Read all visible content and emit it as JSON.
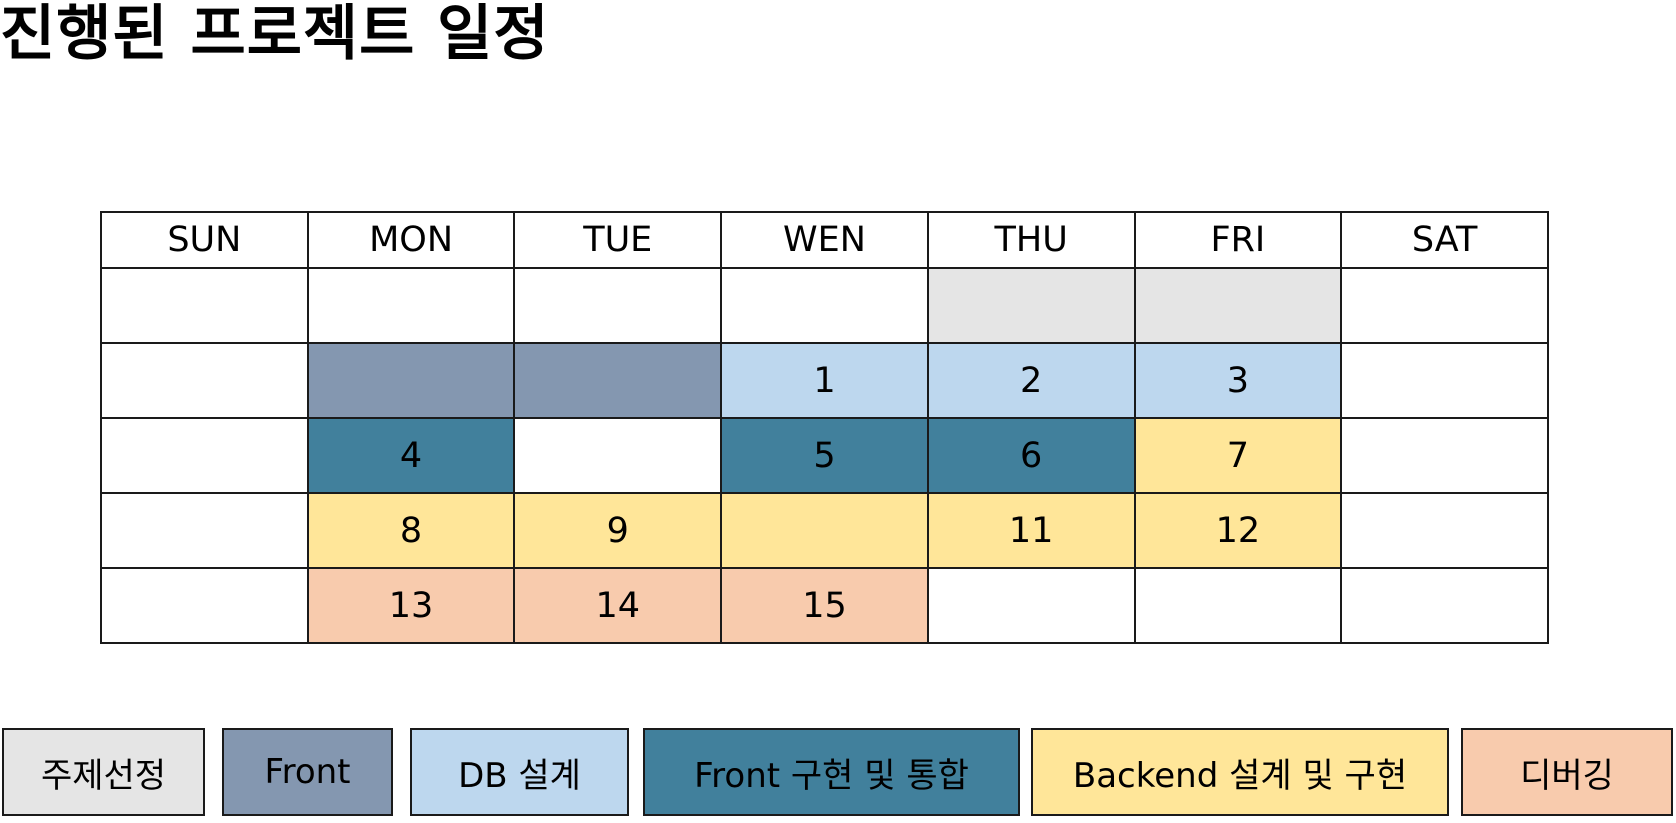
{
  "title": "진행된 프로젝트 일정",
  "colors": {
    "topic": "#E5E5E5",
    "front": "#8497B0",
    "db": "#BDD7EE",
    "front_impl": "#41809C",
    "backend": "#FFE699",
    "debug": "#F8CBAD",
    "empty": "#FFFFFF",
    "border": "#1A1A1A"
  },
  "calendar": {
    "headers": [
      "SUN",
      "MON",
      "TUE",
      "WEN",
      "THU",
      "FRI",
      "SAT"
    ],
    "rows": [
      [
        {
          "text": "",
          "phase": "empty"
        },
        {
          "text": "",
          "phase": "empty"
        },
        {
          "text": "",
          "phase": "empty"
        },
        {
          "text": "",
          "phase": "empty"
        },
        {
          "text": "",
          "phase": "topic"
        },
        {
          "text": "",
          "phase": "topic"
        },
        {
          "text": "",
          "phase": "empty"
        }
      ],
      [
        {
          "text": "",
          "phase": "empty"
        },
        {
          "text": "",
          "phase": "front"
        },
        {
          "text": "",
          "phase": "front"
        },
        {
          "text": "1",
          "phase": "db"
        },
        {
          "text": "2",
          "phase": "db"
        },
        {
          "text": "3",
          "phase": "db"
        },
        {
          "text": "",
          "phase": "empty"
        }
      ],
      [
        {
          "text": "",
          "phase": "empty"
        },
        {
          "text": "4",
          "phase": "front_impl"
        },
        {
          "text": "",
          "phase": "empty"
        },
        {
          "text": "5",
          "phase": "front_impl"
        },
        {
          "text": "6",
          "phase": "front_impl"
        },
        {
          "text": "7",
          "phase": "backend"
        },
        {
          "text": "",
          "phase": "empty"
        }
      ],
      [
        {
          "text": "",
          "phase": "empty"
        },
        {
          "text": "8",
          "phase": "backend"
        },
        {
          "text": "9",
          "phase": "backend"
        },
        {
          "text": "",
          "phase": "backend"
        },
        {
          "text": "11",
          "phase": "backend"
        },
        {
          "text": "12",
          "phase": "backend"
        },
        {
          "text": "",
          "phase": "empty"
        }
      ],
      [
        {
          "text": "",
          "phase": "empty"
        },
        {
          "text": "13",
          "phase": "debug"
        },
        {
          "text": "14",
          "phase": "debug"
        },
        {
          "text": "15",
          "phase": "debug"
        },
        {
          "text": "",
          "phase": "empty"
        },
        {
          "text": "",
          "phase": "empty"
        },
        {
          "text": "",
          "phase": "empty"
        }
      ]
    ]
  },
  "legend": [
    {
      "label": "주제선정",
      "phase": "topic"
    },
    {
      "label": "Front",
      "phase": "front"
    },
    {
      "label": "DB 설계",
      "phase": "db"
    },
    {
      "label": "Front 구현 및 통합",
      "phase": "front_impl"
    },
    {
      "label": "Backend 설계 및 구현",
      "phase": "backend"
    },
    {
      "label": "디버깅",
      "phase": "debug"
    }
  ]
}
